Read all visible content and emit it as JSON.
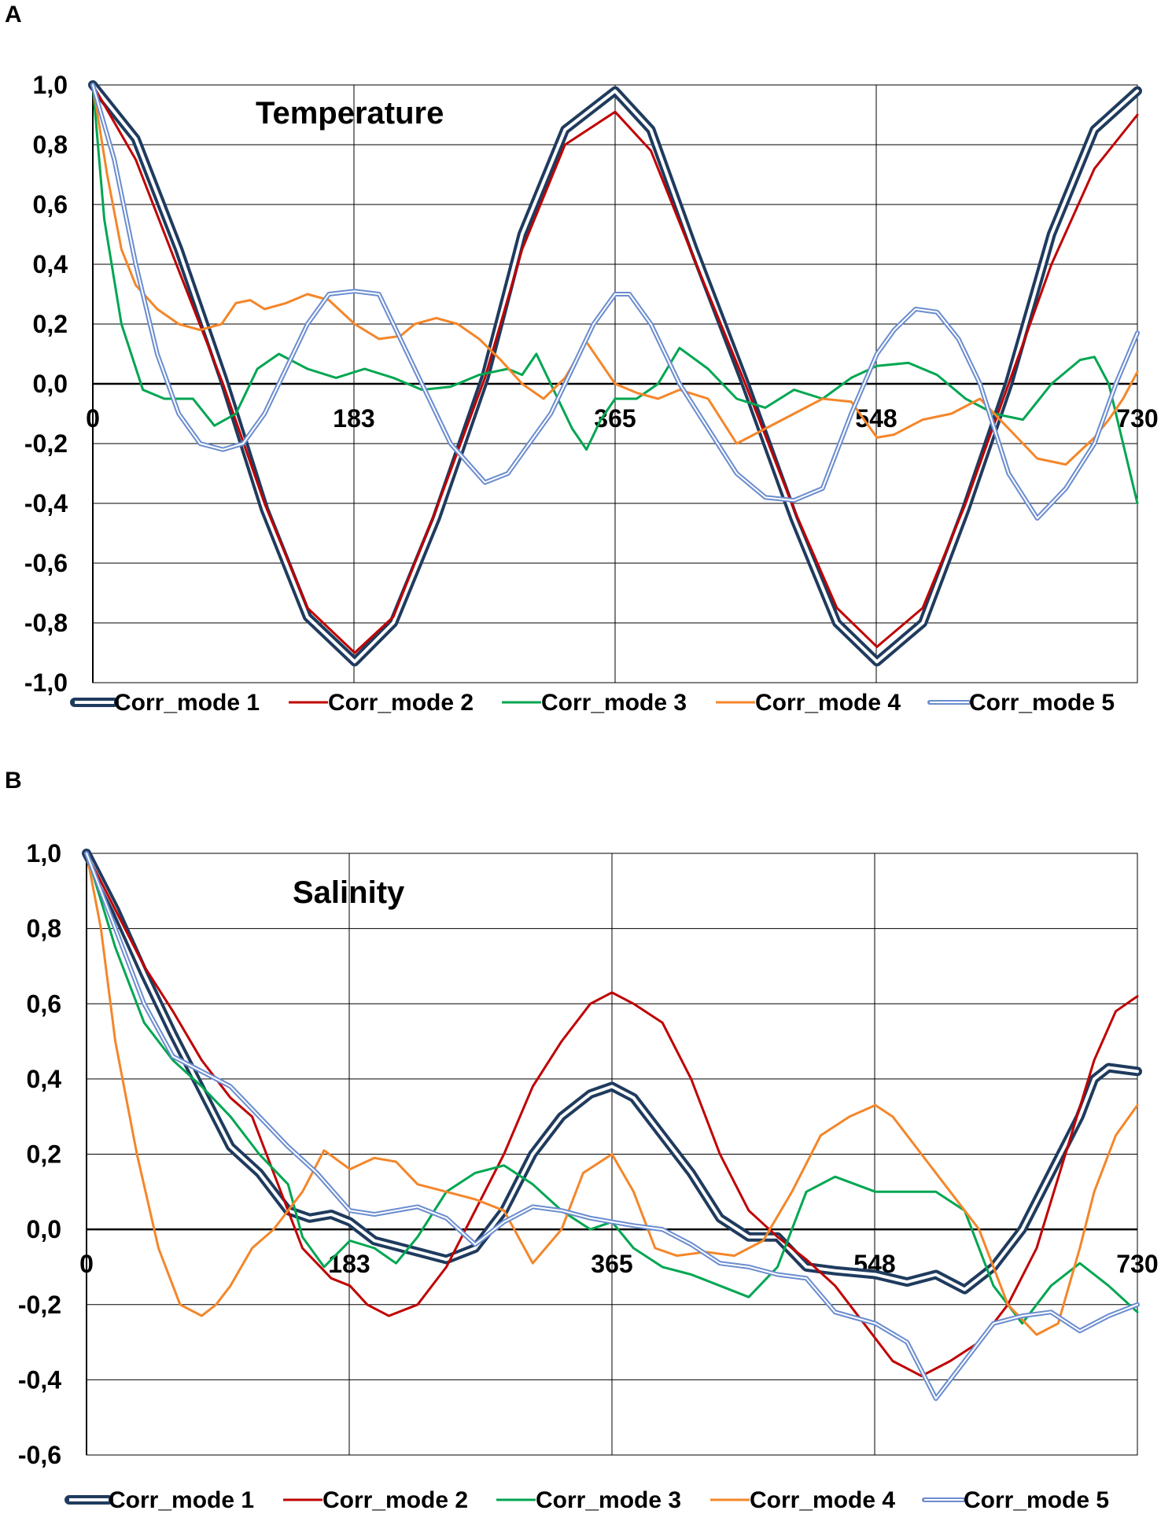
{
  "chart_data": [
    {
      "panel": "A",
      "type": "line",
      "title": "Temperature",
      "xlabel": "",
      "ylabel": "",
      "xlim": [
        0,
        730
      ],
      "ylim": [
        -1.0,
        1.0
      ],
      "x_ticks": [
        "0",
        "183",
        "365",
        "548",
        "730"
      ],
      "y_ticks": [
        "1,0",
        "0,8",
        "0,6",
        "0,4",
        "0,2",
        "0,0",
        "-0,2",
        "-0,4",
        "-0,6",
        "-0,8",
        "-1,0"
      ],
      "grid": true,
      "legend_position": "bottom",
      "series": [
        {
          "name": "Corr_mode 1",
          "color": "#1f3b5e",
          "style": "double",
          "x": [
            0,
            30,
            60,
            91,
            120,
            150,
            183,
            210,
            240,
            274,
            300,
            330,
            365,
            390,
            420,
            456,
            490,
            520,
            548,
            580,
            610,
            640,
            670,
            700,
            730
          ],
          "y": [
            1.0,
            0.82,
            0.45,
            0.02,
            -0.42,
            -0.78,
            -0.93,
            -0.8,
            -0.45,
            0.02,
            0.5,
            0.85,
            0.98,
            0.85,
            0.45,
            0.0,
            -0.45,
            -0.8,
            -0.93,
            -0.8,
            -0.42,
            0.0,
            0.5,
            0.85,
            0.98
          ]
        },
        {
          "name": "Corr_mode 2",
          "color": "#c00000",
          "style": "single",
          "x": [
            0,
            30,
            60,
            91,
            120,
            150,
            183,
            210,
            240,
            274,
            300,
            330,
            365,
            390,
            420,
            456,
            490,
            520,
            548,
            580,
            610,
            640,
            670,
            700,
            730
          ],
          "y": [
            1.0,
            0.75,
            0.38,
            0.0,
            -0.4,
            -0.75,
            -0.9,
            -0.78,
            -0.42,
            0.02,
            0.45,
            0.8,
            0.91,
            0.78,
            0.42,
            0.0,
            -0.42,
            -0.75,
            -0.88,
            -0.75,
            -0.4,
            0.0,
            0.4,
            0.72,
            0.9
          ]
        },
        {
          "name": "Corr_mode 3",
          "color": "#00a651",
          "style": "single",
          "x": [
            0,
            8,
            20,
            35,
            50,
            70,
            85,
            100,
            115,
            130,
            150,
            170,
            190,
            210,
            230,
            250,
            270,
            290,
            300,
            310,
            320,
            335,
            345,
            355,
            365,
            380,
            395,
            410,
            430,
            450,
            470,
            490,
            510,
            530,
            548,
            570,
            590,
            610,
            630,
            650,
            670,
            690,
            700,
            710,
            720,
            730
          ],
          "y": [
            1.0,
            0.55,
            0.2,
            -0.02,
            -0.05,
            -0.05,
            -0.14,
            -0.1,
            0.05,
            0.1,
            0.05,
            0.02,
            0.05,
            0.02,
            -0.02,
            -0.01,
            0.03,
            0.05,
            0.03,
            0.1,
            0.0,
            -0.15,
            -0.22,
            -0.12,
            -0.05,
            -0.05,
            0.0,
            0.12,
            0.05,
            -0.05,
            -0.08,
            -0.02,
            -0.05,
            0.02,
            0.06,
            0.07,
            0.03,
            -0.05,
            -0.1,
            -0.12,
            0.0,
            0.08,
            0.09,
            0.0,
            -0.2,
            -0.4
          ]
        },
        {
          "name": "Corr_mode 4",
          "color": "#f4862a",
          "style": "single",
          "x": [
            0,
            10,
            20,
            30,
            45,
            60,
            75,
            90,
            100,
            110,
            120,
            135,
            150,
            165,
            183,
            200,
            215,
            225,
            240,
            255,
            270,
            285,
            300,
            315,
            330,
            345,
            365,
            380,
            395,
            410,
            430,
            450,
            470,
            490,
            510,
            530,
            548,
            560,
            580,
            600,
            620,
            640,
            660,
            680,
            700,
            710,
            720,
            730
          ],
          "y": [
            1.0,
            0.7,
            0.45,
            0.33,
            0.25,
            0.2,
            0.18,
            0.2,
            0.27,
            0.28,
            0.25,
            0.27,
            0.3,
            0.28,
            0.2,
            0.15,
            0.16,
            0.2,
            0.22,
            0.2,
            0.15,
            0.08,
            0.0,
            -0.05,
            0.02,
            0.14,
            0.0,
            -0.03,
            -0.05,
            -0.02,
            -0.05,
            -0.2,
            -0.15,
            -0.1,
            -0.05,
            -0.06,
            -0.18,
            -0.17,
            -0.12,
            -0.1,
            -0.05,
            -0.15,
            -0.25,
            -0.27,
            -0.18,
            -0.12,
            -0.05,
            0.04
          ]
        },
        {
          "name": "Corr_mode 5",
          "color": "#6a8ccf",
          "style": "double",
          "x": [
            0,
            15,
            30,
            45,
            60,
            75,
            91,
            105,
            120,
            135,
            150,
            165,
            183,
            200,
            215,
            230,
            250,
            274,
            290,
            305,
            320,
            335,
            350,
            365,
            375,
            390,
            410,
            430,
            450,
            470,
            490,
            510,
            530,
            548,
            560,
            575,
            590,
            605,
            620,
            640,
            660,
            680,
            700,
            715,
            730
          ],
          "y": [
            1.0,
            0.75,
            0.4,
            0.1,
            -0.1,
            -0.2,
            -0.22,
            -0.2,
            -0.1,
            0.05,
            0.2,
            0.3,
            0.31,
            0.3,
            0.15,
            0.0,
            -0.2,
            -0.33,
            -0.3,
            -0.2,
            -0.1,
            0.05,
            0.2,
            0.3,
            0.3,
            0.2,
            0.0,
            -0.15,
            -0.3,
            -0.38,
            -0.39,
            -0.35,
            -0.1,
            0.1,
            0.18,
            0.25,
            0.24,
            0.15,
            0.0,
            -0.3,
            -0.45,
            -0.35,
            -0.2,
            0.0,
            0.17
          ]
        }
      ]
    },
    {
      "panel": "B",
      "type": "line",
      "title": "Salinity",
      "xlabel": "",
      "ylabel": "",
      "xlim": [
        0,
        730
      ],
      "ylim": [
        -0.6,
        1.0
      ],
      "x_ticks": [
        "0",
        "183",
        "365",
        "548",
        "730"
      ],
      "y_ticks": [
        "1,0",
        "0,8",
        "0,6",
        "0,4",
        "0,2",
        "0,0",
        "-0,2",
        "-0,4",
        "-0,6"
      ],
      "grid": true,
      "legend_position": "bottom",
      "series": [
        {
          "name": "Corr_mode 1",
          "color": "#1f3b5e",
          "style": "double",
          "x": [
            0,
            20,
            40,
            60,
            80,
            100,
            120,
            140,
            155,
            170,
            183,
            200,
            230,
            250,
            270,
            290,
            310,
            330,
            350,
            365,
            380,
            400,
            420,
            440,
            460,
            480,
            500,
            520,
            548,
            570,
            590,
            610,
            630,
            650,
            670,
            690,
            700,
            710,
            730
          ],
          "y": [
            1.0,
            0.85,
            0.68,
            0.52,
            0.37,
            0.22,
            0.15,
            0.05,
            0.03,
            0.04,
            0.02,
            -0.03,
            -0.06,
            -0.08,
            -0.05,
            0.05,
            0.2,
            0.3,
            0.36,
            0.38,
            0.35,
            0.25,
            0.15,
            0.03,
            -0.02,
            -0.02,
            -0.1,
            -0.11,
            -0.12,
            -0.14,
            -0.12,
            -0.16,
            -0.1,
            0.0,
            0.15,
            0.3,
            0.4,
            0.43,
            0.42
          ]
        },
        {
          "name": "Corr_mode 2",
          "color": "#c00000",
          "style": "single",
          "x": [
            0,
            20,
            40,
            60,
            80,
            100,
            115,
            130,
            150,
            170,
            183,
            195,
            210,
            230,
            250,
            270,
            290,
            310,
            330,
            350,
            365,
            380,
            400,
            420,
            440,
            460,
            480,
            500,
            520,
            540,
            560,
            580,
            600,
            620,
            640,
            660,
            680,
            700,
            715,
            730
          ],
          "y": [
            1.0,
            0.85,
            0.7,
            0.58,
            0.45,
            0.35,
            0.3,
            0.15,
            -0.05,
            -0.13,
            -0.15,
            -0.2,
            -0.23,
            -0.2,
            -0.1,
            0.05,
            0.2,
            0.38,
            0.5,
            0.6,
            0.63,
            0.6,
            0.55,
            0.4,
            0.2,
            0.05,
            -0.02,
            -0.08,
            -0.15,
            -0.25,
            -0.35,
            -0.39,
            -0.35,
            -0.3,
            -0.2,
            -0.05,
            0.2,
            0.45,
            0.58,
            0.62
          ]
        },
        {
          "name": "Corr_mode 3",
          "color": "#00a651",
          "style": "single",
          "x": [
            0,
            20,
            40,
            60,
            80,
            100,
            120,
            140,
            150,
            165,
            183,
            200,
            215,
            230,
            250,
            270,
            290,
            310,
            330,
            350,
            365,
            380,
            400,
            420,
            440,
            460,
            480,
            500,
            520,
            548,
            570,
            590,
            610,
            630,
            650,
            670,
            690,
            710,
            730
          ],
          "y": [
            1.0,
            0.75,
            0.55,
            0.45,
            0.38,
            0.3,
            0.2,
            0.12,
            -0.02,
            -0.1,
            -0.03,
            -0.05,
            -0.09,
            -0.02,
            0.1,
            0.15,
            0.17,
            0.12,
            0.05,
            0.0,
            0.02,
            -0.05,
            -0.1,
            -0.12,
            -0.15,
            -0.18,
            -0.1,
            0.1,
            0.14,
            0.1,
            0.1,
            0.1,
            0.05,
            -0.15,
            -0.25,
            -0.15,
            -0.09,
            -0.15,
            -0.22
          ]
        },
        {
          "name": "Corr_mode 4",
          "color": "#f4862a",
          "style": "single",
          "x": [
            0,
            10,
            20,
            35,
            50,
            65,
            80,
            90,
            100,
            115,
            130,
            150,
            165,
            183,
            200,
            215,
            230,
            250,
            270,
            290,
            310,
            330,
            345,
            365,
            380,
            395,
            410,
            430,
            450,
            470,
            490,
            510,
            530,
            548,
            560,
            580,
            600,
            620,
            640,
            660,
            675,
            690,
            700,
            715,
            730
          ],
          "y": [
            1.0,
            0.8,
            0.5,
            0.2,
            -0.05,
            -0.2,
            -0.23,
            -0.2,
            -0.15,
            -0.05,
            0.0,
            0.1,
            0.21,
            0.16,
            0.19,
            0.18,
            0.12,
            0.1,
            0.08,
            0.05,
            -0.09,
            0.0,
            0.15,
            0.2,
            0.1,
            -0.05,
            -0.07,
            -0.06,
            -0.07,
            -0.03,
            0.1,
            0.25,
            0.3,
            0.33,
            0.3,
            0.2,
            0.1,
            0.0,
            -0.2,
            -0.28,
            -0.25,
            -0.05,
            0.1,
            0.25,
            0.33
          ]
        },
        {
          "name": "Corr_mode 5",
          "color": "#6a8ccf",
          "style": "double",
          "x": [
            0,
            20,
            40,
            60,
            80,
            100,
            120,
            140,
            160,
            183,
            200,
            215,
            230,
            250,
            270,
            290,
            310,
            330,
            350,
            365,
            380,
            400,
            420,
            440,
            460,
            480,
            500,
            520,
            548,
            570,
            590,
            610,
            630,
            650,
            670,
            690,
            710,
            730
          ],
          "y": [
            1.0,
            0.8,
            0.6,
            0.46,
            0.42,
            0.38,
            0.3,
            0.22,
            0.15,
            0.05,
            0.04,
            0.05,
            0.06,
            0.03,
            -0.04,
            0.02,
            0.06,
            0.05,
            0.03,
            0.02,
            0.01,
            0.0,
            -0.04,
            -0.09,
            -0.1,
            -0.12,
            -0.13,
            -0.22,
            -0.25,
            -0.3,
            -0.45,
            -0.35,
            -0.25,
            -0.23,
            -0.22,
            -0.27,
            -0.23,
            -0.2
          ]
        }
      ]
    }
  ]
}
